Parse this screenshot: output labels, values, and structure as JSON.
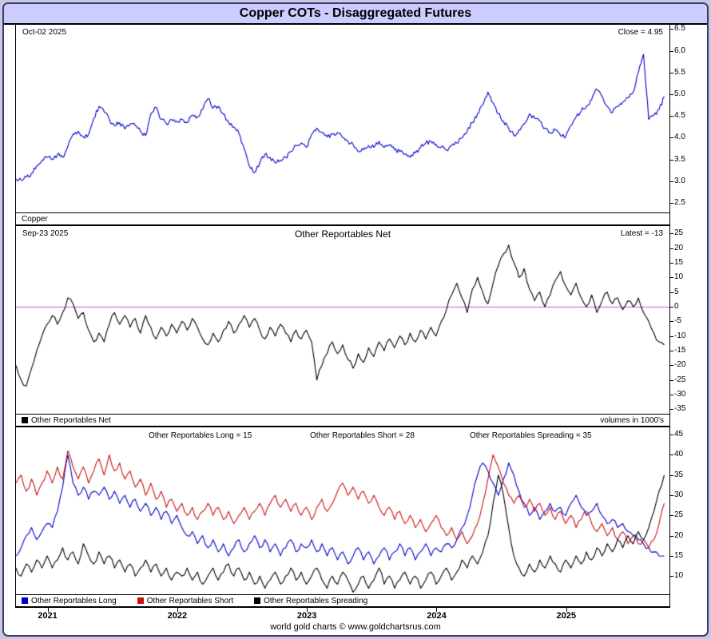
{
  "header": {
    "title": "Copper COTs - Disaggregated Futures"
  },
  "footer": {
    "text": "world gold charts © www.goldchartsrus.com"
  },
  "x_axis": {
    "xlim": [
      2020.75,
      2025.79
    ],
    "year_labels": [
      "2021",
      "2022",
      "2023",
      "2024",
      "2025"
    ],
    "year_values": [
      2021,
      2022,
      2023,
      2024,
      2025
    ]
  },
  "chart_data": [
    {
      "type": "line",
      "name": "copper-price",
      "date_label": "Oct-02  2025",
      "right_label": "Close = 4.95",
      "bottom_label": "Copper",
      "ylim": [
        2.28,
        6.6
      ],
      "yticks": [
        "6.5",
        "6.0",
        "5.5",
        "5.0",
        "4.5",
        "4.0",
        "3.5",
        "3.0",
        "2.5"
      ],
      "ytick_values": [
        6.5,
        6.0,
        5.5,
        5.0,
        4.5,
        4.0,
        3.5,
        3.0,
        2.5
      ],
      "x_start": 2020.75,
      "x_end": 2025.75,
      "series": [
        {
          "name": "Copper",
          "color": "#0000cc",
          "width": 1.1,
          "subdiv": 4,
          "noise": 0.05,
          "values": [
            3.05,
            3.02,
            3.1,
            3.18,
            3.35,
            3.48,
            3.55,
            3.5,
            3.62,
            3.55,
            3.8,
            4.08,
            4.15,
            4.02,
            4.08,
            4.45,
            4.72,
            4.6,
            4.42,
            4.28,
            4.35,
            4.2,
            4.32,
            4.28,
            4.15,
            4.05,
            4.55,
            4.7,
            4.42,
            4.32,
            4.42,
            4.38,
            4.42,
            4.35,
            4.52,
            4.48,
            4.65,
            4.9,
            4.68,
            4.72,
            4.55,
            4.35,
            4.25,
            4.1,
            3.75,
            3.35,
            3.2,
            3.42,
            3.62,
            3.55,
            3.42,
            3.48,
            3.55,
            3.68,
            3.82,
            3.88,
            3.78,
            4.08,
            4.22,
            4.12,
            4.02,
            4.08,
            4.12,
            4.0,
            3.92,
            3.85,
            3.68,
            3.72,
            3.82,
            3.78,
            3.92,
            3.78,
            3.82,
            3.72,
            3.68,
            3.62,
            3.55,
            3.65,
            3.78,
            3.88,
            3.92,
            3.85,
            3.78,
            3.72,
            3.82,
            3.88,
            4.0,
            4.15,
            4.35,
            4.55,
            4.75,
            5.05,
            4.8,
            4.55,
            4.38,
            4.22,
            4.05,
            4.18,
            4.32,
            4.55,
            4.45,
            4.38,
            4.22,
            4.12,
            4.18,
            4.05,
            4.02,
            4.28,
            4.48,
            4.62,
            4.72,
            4.88,
            5.12,
            4.95,
            4.72,
            4.58,
            4.72,
            4.82,
            4.92,
            5.05,
            5.5,
            5.92,
            4.42,
            4.52,
            4.65,
            4.95
          ]
        }
      ]
    },
    {
      "type": "line",
      "name": "other-reportables-net",
      "title": "Other Reportables Net",
      "date_label": "Sep-23  2025",
      "right_label": "Latest = -13",
      "right_note": "volumes in 1000's",
      "legend": [
        {
          "label": "Other Reportables Net",
          "color": "#000000"
        }
      ],
      "zero_line_color": "#c05fc0",
      "ylim": [
        -36.5,
        27.5
      ],
      "yticks": [
        "25",
        "20",
        "15",
        "10",
        "5",
        "0",
        "-5",
        "-10",
        "-15",
        "-20",
        "-25",
        "-30",
        "-35"
      ],
      "ytick_values": [
        25,
        20,
        15,
        10,
        5,
        0,
        -5,
        -10,
        -15,
        -20,
        -25,
        -30,
        -35
      ],
      "x_start": 2020.75,
      "x_end": 2025.75,
      "series": [
        {
          "name": "Other Reportables Net",
          "color": "#000000",
          "width": 1.1,
          "subdiv": 2,
          "noise": 0.9,
          "values": [
            -20,
            -25,
            -27,
            -21,
            -15,
            -10,
            -6,
            -3,
            -6,
            -2,
            3,
            1,
            -4,
            -2,
            -8,
            -12,
            -9,
            -12,
            -6,
            -2,
            -6,
            -3,
            -7,
            -4,
            -9,
            -3,
            -7,
            -11,
            -7,
            -10,
            -6,
            -9,
            -5,
            -8,
            -4,
            -7,
            -11,
            -13,
            -9,
            -12,
            -8,
            -5,
            -9,
            -6,
            -3,
            -7,
            -4,
            -8,
            -11,
            -7,
            -10,
            -6,
            -9,
            -12,
            -8,
            -11,
            -8,
            -12,
            -25,
            -20,
            -16,
            -12,
            -16,
            -13,
            -18,
            -21,
            -16,
            -19,
            -14,
            -17,
            -12,
            -15,
            -11,
            -14,
            -10,
            -13,
            -9,
            -12,
            -8,
            -11,
            -7,
            -10,
            -5,
            -1,
            4,
            8,
            3,
            -2,
            6,
            10,
            5,
            1,
            8,
            14,
            18,
            21,
            15,
            10,
            13,
            6,
            2,
            5,
            0,
            4,
            9,
            12,
            7,
            4,
            8,
            3,
            0,
            4,
            -2,
            2,
            5,
            1,
            3,
            -1,
            2,
            0,
            3,
            -2,
            -5,
            -9,
            -12,
            -13
          ]
        }
      ]
    },
    {
      "type": "line",
      "name": "other-reportables-volumes",
      "top_labels": [
        "Other Reportables Long = 15",
        "Other Reportables Short = 28",
        "Other Reportables Spreading = 35"
      ],
      "legend": [
        {
          "label": "Other Reportables Long",
          "color": "#0000cc"
        },
        {
          "label": "Other Reportables Short",
          "color": "#cc1111"
        },
        {
          "label": "Other Reportables Spreading",
          "color": "#000000"
        }
      ],
      "ylim": [
        5.5,
        46.8
      ],
      "yticks": [
        "45",
        "40",
        "35",
        "30",
        "25",
        "20",
        "15",
        "10"
      ],
      "ytick_values": [
        45,
        40,
        35,
        30,
        25,
        20,
        15,
        10
      ],
      "x_start": 2020.75,
      "x_end": 2025.75,
      "series": [
        {
          "name": "Other Reportables Long",
          "color": "#0000cc",
          "width": 1.1,
          "subdiv": 2,
          "noise": 0.7,
          "values": [
            15,
            17,
            20,
            22,
            19,
            21,
            23,
            22,
            26,
            32,
            40,
            33,
            30,
            32,
            29,
            31,
            30,
            32,
            29,
            31,
            28,
            30,
            27,
            29,
            26,
            28,
            25,
            27,
            24,
            26,
            23,
            25,
            22,
            20,
            21,
            18,
            20,
            17,
            19,
            16,
            18,
            15,
            17,
            19,
            16,
            18,
            20,
            17,
            19,
            16,
            18,
            15,
            17,
            19,
            16,
            18,
            17,
            19,
            16,
            18,
            15,
            17,
            14,
            16,
            13,
            15,
            17,
            14,
            16,
            13,
            15,
            17,
            14,
            16,
            18,
            15,
            17,
            14,
            16,
            18,
            15,
            17,
            16,
            18,
            17,
            19,
            22,
            25,
            30,
            35,
            38,
            36,
            33,
            30,
            34,
            38,
            35,
            31,
            28,
            25,
            27,
            24,
            26,
            28,
            26,
            27,
            25,
            28,
            30,
            27,
            25,
            26,
            28,
            25,
            23,
            24,
            22,
            23,
            21,
            20,
            19,
            18,
            17,
            16,
            15,
            15
          ]
        },
        {
          "name": "Other Reportables Short",
          "color": "#cc1111",
          "width": 1.1,
          "subdiv": 2,
          "noise": 0.7,
          "values": [
            33,
            35,
            31,
            34,
            30,
            33,
            36,
            33,
            37,
            34,
            41,
            37,
            34,
            37,
            33,
            36,
            39,
            35,
            40,
            36,
            38,
            34,
            36,
            32,
            34,
            30,
            33,
            29,
            31,
            27,
            29,
            26,
            28,
            25,
            27,
            24,
            26,
            28,
            25,
            27,
            24,
            26,
            23,
            25,
            27,
            24,
            26,
            28,
            25,
            28,
            30,
            27,
            29,
            26,
            28,
            25,
            27,
            24,
            27,
            29,
            26,
            28,
            31,
            33,
            30,
            32,
            29,
            31,
            28,
            30,
            27,
            25,
            27,
            24,
            26,
            23,
            25,
            22,
            24,
            21,
            23,
            25,
            22,
            20,
            22,
            19,
            21,
            18,
            20,
            23,
            28,
            34,
            40,
            37,
            33,
            30,
            28,
            30,
            27,
            29,
            26,
            28,
            25,
            27,
            24,
            26,
            23,
            25,
            22,
            24,
            26,
            23,
            21,
            23,
            20,
            22,
            19,
            21,
            18,
            20,
            18,
            19,
            17,
            19,
            23,
            28
          ]
        },
        {
          "name": "Other Reportables Spreading",
          "color": "#000000",
          "width": 1.1,
          "subdiv": 2,
          "noise": 0.7,
          "values": [
            12,
            10,
            13,
            11,
            14,
            12,
            15,
            12,
            14,
            17,
            14,
            16,
            13,
            18,
            15,
            13,
            16,
            13,
            15,
            12,
            14,
            11,
            13,
            10,
            12,
            14,
            11,
            13,
            10,
            12,
            9,
            11,
            10,
            12,
            9,
            11,
            8,
            10,
            12,
            9,
            11,
            13,
            10,
            12,
            9,
            11,
            8,
            10,
            7,
            9,
            11,
            8,
            10,
            12,
            9,
            11,
            8,
            10,
            12,
            9,
            7,
            10,
            8,
            11,
            9,
            6,
            8,
            10,
            7,
            9,
            12,
            8,
            10,
            7,
            9,
            11,
            8,
            10,
            7,
            9,
            11,
            8,
            10,
            12,
            9,
            11,
            14,
            12,
            15,
            13,
            16,
            20,
            28,
            35,
            30,
            22,
            15,
            12,
            10,
            13,
            11,
            14,
            12,
            15,
            13,
            11,
            14,
            12,
            15,
            13,
            16,
            14,
            17,
            15,
            18,
            16,
            19,
            17,
            20,
            18,
            21,
            19,
            22,
            26,
            31,
            35
          ]
        }
      ]
    }
  ]
}
